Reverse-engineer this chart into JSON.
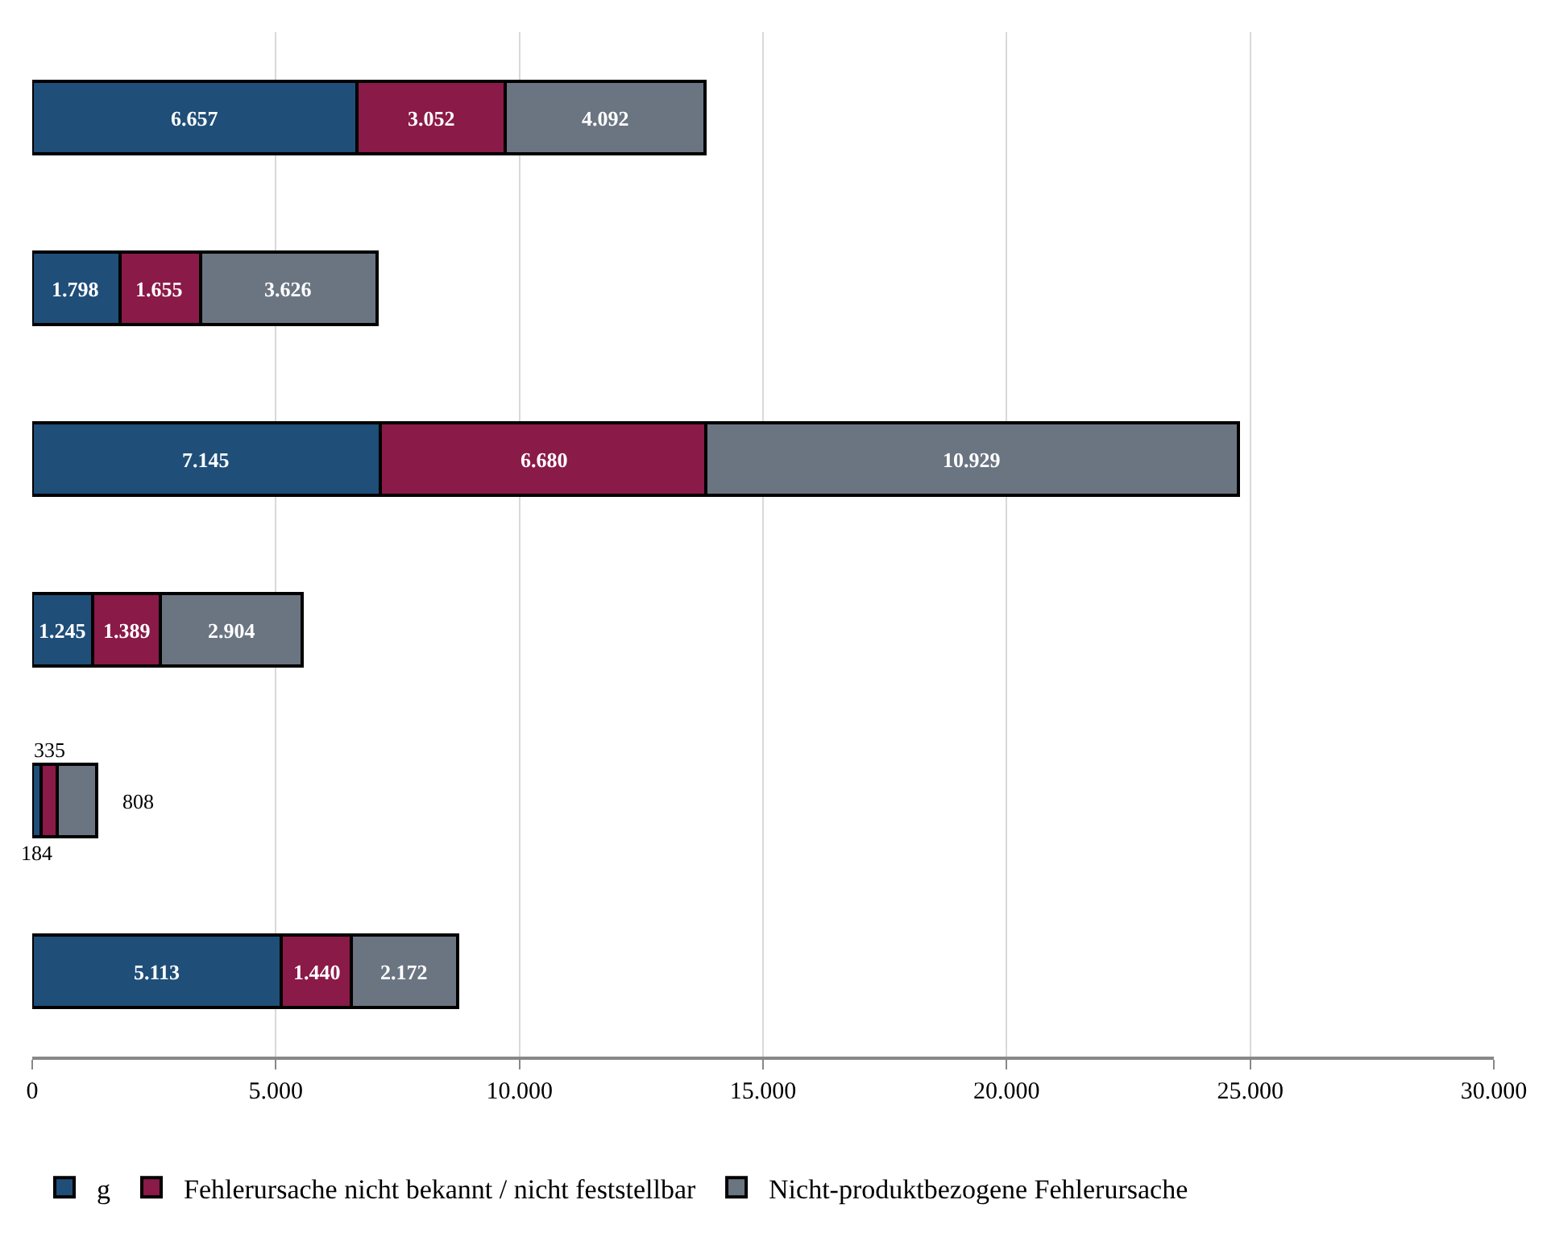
{
  "chart_data": {
    "type": "bar",
    "orientation": "horizontal",
    "stacked": true,
    "categories": [
      null,
      null,
      null,
      null,
      null,
      null
    ],
    "series": [
      {
        "name": "g",
        "color": "#1f4e79",
        "values": [
          6657,
          1798,
          7145,
          1245,
          184,
          5113
        ],
        "value_labels": [
          "6.657",
          "1.798",
          "7.145",
          "1.245",
          "184",
          "5.113"
        ]
      },
      {
        "name": "Fehlerursache nicht bekannt / nicht feststellbar",
        "color": "#8a1a48",
        "values": [
          3052,
          1655,
          6680,
          1389,
          335,
          1440
        ],
        "value_labels": [
          "3.052",
          "1.655",
          "6.680",
          "1.389",
          "335",
          "1.440"
        ]
      },
      {
        "name": "Nicht-produktbezogene Fehlerursache",
        "color": "#6b7582",
        "values": [
          4092,
          3626,
          10929,
          2904,
          808,
          2172
        ],
        "value_labels": [
          "4.092",
          "3.626",
          "10.929",
          "2.904",
          "808",
          "2.172"
        ]
      }
    ],
    "xlim": [
      0,
      30000
    ],
    "xticks": [
      {
        "value": 0,
        "label": "0"
      },
      {
        "value": 5000,
        "label": "5.000"
      },
      {
        "value": 10000,
        "label": "10.000"
      },
      {
        "value": 15000,
        "label": "15.000"
      },
      {
        "value": 20000,
        "label": "20.000"
      },
      {
        "value": 25000,
        "label": "25.000"
      },
      {
        "value": 30000,
        "label": "30.000"
      }
    ],
    "grid": "x",
    "legend": "bottom",
    "tick_labels": "x"
  }
}
